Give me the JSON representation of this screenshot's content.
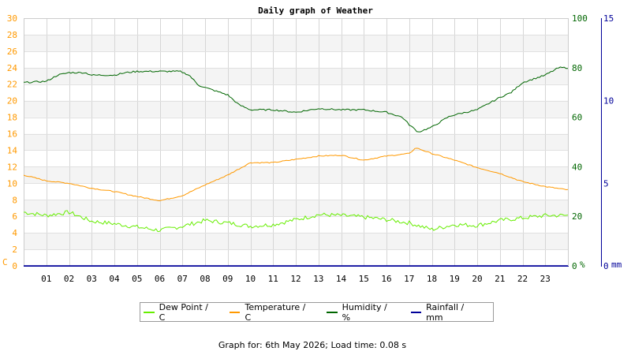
{
  "chart_data": {
    "type": "line",
    "title": "Daily graph of Weather",
    "x_ticks": [
      "01",
      "02",
      "03",
      "04",
      "05",
      "06",
      "07",
      "08",
      "09",
      "10",
      "11",
      "12",
      "13",
      "14",
      "15",
      "16",
      "17",
      "18",
      "19",
      "20",
      "21",
      "22",
      "23"
    ],
    "x_range": [
      0,
      24
    ],
    "axes": {
      "left": {
        "unit_label": "C",
        "range": [
          0,
          30
        ],
        "ticks": [
          0,
          2,
          4,
          6,
          8,
          10,
          12,
          14,
          16,
          18,
          20,
          22,
          24,
          26,
          28,
          30
        ],
        "color": "#ff9900"
      },
      "right1": {
        "unit_label": "%",
        "range": [
          0,
          100
        ],
        "ticks": [
          0,
          20,
          40,
          60,
          80,
          100
        ],
        "color": "#006600"
      },
      "right2": {
        "unit_label": "mm",
        "range": [
          0,
          15
        ],
        "ticks": [
          0,
          5,
          10,
          15
        ],
        "color": "#000099"
      }
    },
    "grid": true,
    "legend_position": "bottom",
    "series": [
      {
        "name": "Dew Point / C",
        "axis": "left",
        "color": "#66ee00",
        "noise": 0.25,
        "x": [
          0,
          1,
          2,
          3,
          4,
          5,
          6,
          7,
          8,
          9,
          10,
          11,
          12,
          13,
          14,
          15,
          16,
          17,
          18,
          19,
          20,
          21,
          22,
          23,
          24
        ],
        "values": [
          6.5,
          6.1,
          6.5,
          5.4,
          5.1,
          4.7,
          4.3,
          4.8,
          5.5,
          5.2,
          4.8,
          5.0,
          5.6,
          6.2,
          6.1,
          5.9,
          5.6,
          5.2,
          4.4,
          5.0,
          4.9,
          5.5,
          5.8,
          6.1,
          6.1
        ]
      },
      {
        "name": "Temperature / C",
        "axis": "left",
        "color": "#ff9900",
        "noise": 0.06,
        "x": [
          0,
          1,
          2,
          3,
          4,
          5,
          6,
          7,
          8,
          9,
          10,
          11,
          12,
          13,
          14,
          15,
          16,
          17,
          17.3,
          18,
          19,
          20,
          21,
          22,
          23,
          24
        ],
        "values": [
          11.0,
          10.3,
          10.0,
          9.4,
          9.0,
          8.4,
          7.9,
          8.5,
          9.8,
          11.0,
          12.5,
          12.5,
          12.9,
          13.3,
          13.4,
          12.8,
          13.3,
          13.6,
          14.3,
          13.6,
          12.8,
          11.9,
          11.2,
          10.2,
          9.6,
          9.2
        ]
      },
      {
        "name": "Humidity / %",
        "axis": "right1",
        "color": "#006600",
        "noise": 0.3,
        "x": [
          0,
          1,
          1.5,
          2,
          2.7,
          3,
          4,
          4.5,
          5,
          6,
          6.9,
          7.3,
          7.7,
          8,
          9,
          9.5,
          10,
          11,
          12,
          13,
          14,
          15,
          16,
          16.7,
          17,
          17.4,
          18,
          18.7,
          19,
          20,
          21,
          21.5,
          22,
          23,
          23.6,
          24
        ],
        "values": [
          74,
          74.5,
          77,
          78,
          78,
          77,
          77,
          78,
          78.5,
          78.5,
          78.5,
          77,
          73,
          72,
          69,
          65,
          63,
          63,
          62,
          63.5,
          63,
          63,
          62,
          60,
          57,
          54,
          56,
          60,
          61,
          63,
          68,
          70,
          74,
          77,
          80,
          80
        ]
      },
      {
        "name": "Rainfall / mm",
        "axis": "right2",
        "color": "#000099",
        "noise": 0,
        "x": [
          0,
          24
        ],
        "values": [
          0,
          0
        ]
      }
    ]
  },
  "footer": "Graph for: 6th May 2026; Load time: 0.08 s"
}
